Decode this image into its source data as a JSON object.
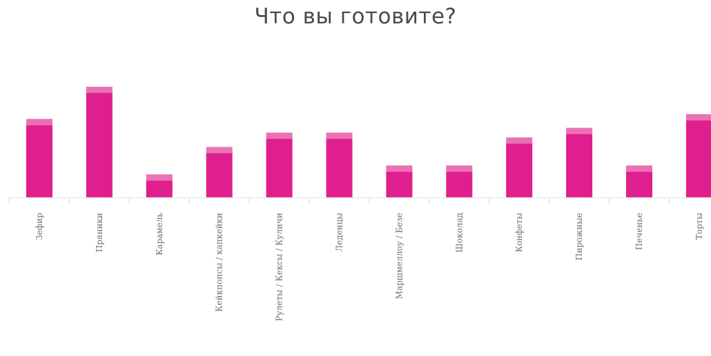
{
  "chart_data": {
    "type": "bar",
    "title": "Что вы готовите?",
    "xlabel": "",
    "ylabel": "",
    "categories": [
      "Зефир",
      "Пряники",
      "Карамель",
      "Кейкпопсы / капкейки",
      "Рулеты / Кексы / Куличи",
      "Леденцы",
      "Маршмеллоу / Безе",
      "Шоколад",
      "Конфеты",
      "Пирожные",
      "Печенье",
      "Торты"
    ],
    "values": [
      115,
      162,
      34,
      74,
      95,
      95,
      47,
      47,
      88,
      102,
      47,
      122
    ],
    "ylim": [
      0,
      165
    ],
    "grid": false,
    "colors": {
      "bar": "#e01f8f",
      "bar_cap": "#ea72b4"
    }
  }
}
